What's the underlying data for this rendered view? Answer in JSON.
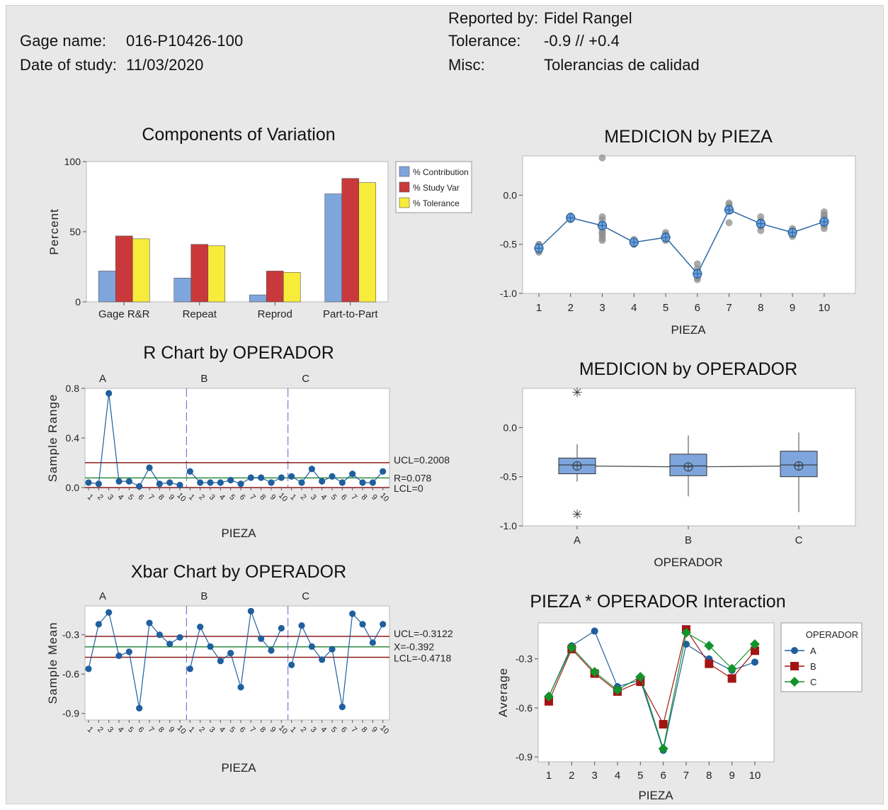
{
  "header": {
    "gage_label": "Gage name:",
    "gage_value": "016-P10426-100",
    "date_label": "Date of study:",
    "date_value": "11/03/2020",
    "reported_label": "Reported by:",
    "reported_value": "Fidel Rangel",
    "tolerance_label": "Tolerance:",
    "tolerance_value": "-0.9 // +0.4",
    "misc_label": "Misc:",
    "misc_value": "Tolerancias de calidad"
  },
  "colors": {
    "contribution": "#7ea6dc",
    "study_var": "#c9393b",
    "tolerance": "#f7ec3a",
    "series_a": "#1f5f9e",
    "series_b": "#a31515",
    "series_c": "#13932b",
    "limit": "#8b1a1a",
    "center": "#2e8b3e"
  },
  "chart_data": [
    {
      "id": "components",
      "type": "bar",
      "title": "Components of Variation",
      "ylabel": "Percent",
      "ylim": [
        0,
        100
      ],
      "yticks": [
        "0",
        "50",
        "100"
      ],
      "categories": [
        "Gage R&R",
        "Repeat",
        "Reprod",
        "Part-to-Part"
      ],
      "legend_position": "top-right",
      "series": [
        {
          "name": "% Contribution",
          "values": [
            22,
            17,
            5,
            77
          ]
        },
        {
          "name": "% Study Var",
          "values": [
            47,
            41,
            22,
            88
          ]
        },
        {
          "name": "% Tolerance",
          "values": [
            45,
            40,
            21,
            85
          ]
        }
      ]
    },
    {
      "id": "medicion_pieza",
      "type": "line",
      "title": "MEDICION by PIEZA",
      "xlabel": "PIEZA",
      "ylim": [
        -1.0,
        0.4
      ],
      "yticks": [
        "-1.0",
        "-0.5",
        "0.0"
      ],
      "x": [
        "1",
        "2",
        "3",
        "4",
        "5",
        "6",
        "7",
        "8",
        "9",
        "10"
      ],
      "means": [
        -0.54,
        -0.23,
        -0.31,
        -0.48,
        -0.43,
        -0.8,
        -0.15,
        -0.29,
        -0.38,
        -0.27
      ],
      "points": [
        [
          -0.5,
          -0.52,
          -0.55,
          -0.58,
          -0.53,
          -0.56,
          -0.57,
          -0.51,
          -0.54
        ],
        [
          -0.22,
          -0.24,
          -0.23,
          -0.22,
          -0.25,
          -0.24,
          -0.21,
          -0.23,
          -0.24
        ],
        [
          0.38,
          -0.22,
          -0.25,
          -0.41,
          -0.46,
          -0.38,
          -0.44,
          -0.35,
          -0.39
        ],
        [
          -0.45,
          -0.48,
          -0.5,
          -0.47,
          -0.49,
          -0.5,
          -0.47,
          -0.48,
          -0.49
        ],
        [
          -0.38,
          -0.41,
          -0.44,
          -0.46,
          -0.4,
          -0.43,
          -0.45,
          -0.42,
          -0.44
        ],
        [
          -0.7,
          -0.78,
          -0.82,
          -0.86,
          -0.75,
          -0.8,
          -0.84,
          -0.79,
          -0.81
        ],
        [
          -0.08,
          -0.12,
          -0.15,
          -0.28,
          -0.1,
          -0.14,
          -0.13,
          -0.16,
          -0.15
        ],
        [
          -0.22,
          -0.26,
          -0.3,
          -0.36,
          -0.28,
          -0.32,
          -0.27,
          -0.31,
          -0.29
        ],
        [
          -0.34,
          -0.37,
          -0.4,
          -0.42,
          -0.36,
          -0.39,
          -0.38,
          -0.4,
          -0.38
        ],
        [
          -0.17,
          -0.2,
          -0.25,
          -0.3,
          -0.34,
          -0.22,
          -0.27,
          -0.31,
          -0.28
        ]
      ]
    },
    {
      "id": "r_chart",
      "type": "line",
      "title": "R Chart by OPERADOR",
      "ylabel": "Sample Range",
      "xlabel": "PIEZA",
      "ylim": [
        0,
        0.8
      ],
      "yticks": [
        "0.0",
        "0.4",
        "0.8"
      ],
      "groups": [
        "A",
        "B",
        "C"
      ],
      "x_ticks": [
        "1",
        "2",
        "3",
        "4",
        "5",
        "6",
        "7",
        "8",
        "9",
        "10"
      ],
      "values": [
        [
          0.04,
          0.03,
          0.76,
          0.05,
          0.05,
          0.01,
          0.16,
          0.03,
          0.04,
          0.02
        ],
        [
          0.13,
          0.04,
          0.04,
          0.04,
          0.06,
          0.03,
          0.08,
          0.08,
          0.04,
          0.08
        ],
        [
          0.09,
          0.04,
          0.15,
          0.05,
          0.09,
          0.04,
          0.11,
          0.04,
          0.04,
          0.13
        ]
      ],
      "ucl": 0.2008,
      "center": 0.078,
      "lcl": 0,
      "ucl_label": "UCL=0.2008",
      "center_label": "R=0.078",
      "lcl_label": "LCL=0"
    },
    {
      "id": "xbar_chart",
      "type": "line",
      "title": "Xbar Chart by OPERADOR",
      "ylabel": "Sample Mean",
      "xlabel": "PIEZA",
      "ylim": [
        -0.95,
        -0.08
      ],
      "yticks": [
        "-0.9",
        "-0.6",
        "-0.3"
      ],
      "groups": [
        "A",
        "B",
        "C"
      ],
      "x_ticks": [
        "1",
        "2",
        "3",
        "4",
        "5",
        "6",
        "7",
        "8",
        "9",
        "10"
      ],
      "values": [
        [
          -0.56,
          -0.22,
          -0.13,
          -0.46,
          -0.43,
          -0.86,
          -0.21,
          -0.3,
          -0.37,
          -0.32
        ],
        [
          -0.56,
          -0.24,
          -0.39,
          -0.5,
          -0.44,
          -0.7,
          -0.12,
          -0.33,
          -0.42,
          -0.25
        ],
        [
          -0.53,
          -0.23,
          -0.39,
          -0.49,
          -0.41,
          -0.85,
          -0.14,
          -0.22,
          -0.36,
          -0.22
        ]
      ],
      "ucl": -0.3122,
      "center": -0.392,
      "lcl": -0.4718,
      "ucl_label": "UCL=-0.3122",
      "center_label": "X=-0.392",
      "lcl_label": "LCL=-0.4718"
    },
    {
      "id": "medicion_operador",
      "type": "box",
      "title": "MEDICION by OPERADOR",
      "xlabel": "OPERADOR",
      "ylim": [
        -1.0,
        0.4
      ],
      "yticks": [
        "-1.0",
        "-0.5",
        "0.0"
      ],
      "categories": [
        "A",
        "B",
        "C"
      ],
      "boxes": [
        {
          "q1": -0.47,
          "median": -0.38,
          "q3": -0.31,
          "low": -0.55,
          "high": -0.17,
          "mean": -0.39,
          "outliers": [
            0.37,
            -0.87
          ]
        },
        {
          "q1": -0.49,
          "median": -0.39,
          "q3": -0.27,
          "low": -0.7,
          "high": -0.08,
          "mean": -0.4,
          "outliers": []
        },
        {
          "q1": -0.5,
          "median": -0.38,
          "q3": -0.24,
          "low": -0.86,
          "high": -0.05,
          "mean": -0.39,
          "outliers": []
        }
      ]
    },
    {
      "id": "interaction",
      "type": "line",
      "title": "PIEZA * OPERADOR Interaction",
      "ylabel": "Average",
      "xlabel": "PIEZA",
      "ylim": [
        -0.93,
        -0.08
      ],
      "yticks": [
        "-0.9",
        "-0.6",
        "-0.3"
      ],
      "x": [
        "1",
        "2",
        "3",
        "4",
        "5",
        "6",
        "7",
        "8",
        "9",
        "10"
      ],
      "legend_title": "OPERADOR",
      "legend_position": "right",
      "series": [
        {
          "name": "A",
          "values": [
            -0.53,
            -0.22,
            -0.13,
            -0.47,
            -0.43,
            -0.86,
            -0.21,
            -0.3,
            -0.37,
            -0.32
          ]
        },
        {
          "name": "B",
          "values": [
            -0.56,
            -0.24,
            -0.39,
            -0.5,
            -0.44,
            -0.7,
            -0.12,
            -0.33,
            -0.42,
            -0.25
          ]
        },
        {
          "name": "C",
          "values": [
            -0.53,
            -0.23,
            -0.38,
            -0.49,
            -0.41,
            -0.85,
            -0.14,
            -0.22,
            -0.36,
            -0.21
          ]
        }
      ]
    }
  ]
}
